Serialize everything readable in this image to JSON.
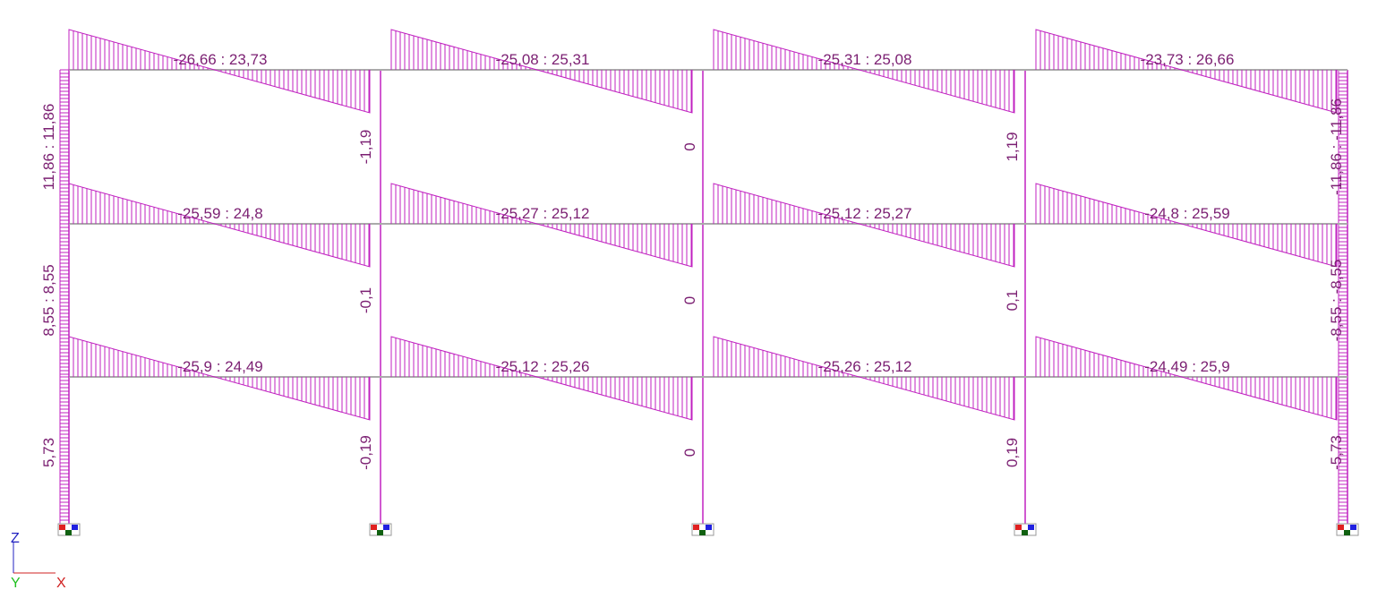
{
  "beam_labels": [
    [
      "-26,66 : 23,73",
      "-25,08 : 25,31",
      "-25,31 : 25,08",
      "-23,73 : 26,66"
    ],
    [
      "-25,59 : 24,8",
      "-25,27 : 25,12",
      "-25,12 : 25,27",
      "-24,8 : 25,59"
    ],
    [
      "-25,9 : 24,49",
      "-25,12 : 25,26",
      "-25,26 : 25,12",
      "-24,49 : 25,9"
    ]
  ],
  "column_labels": [
    [
      "11,86 : 11,86",
      "-1,19",
      "0",
      "1,19",
      "-11,86 : -11,86"
    ],
    [
      "8,55 : 8,55",
      "-0,1",
      "0",
      "0,1",
      "-8,55 : -8,55"
    ],
    [
      "5,73",
      "-0,19",
      "0",
      "0,19",
      "-5,73"
    ]
  ],
  "axes": {
    "z": "Z",
    "x": "X",
    "y": "Y"
  }
}
